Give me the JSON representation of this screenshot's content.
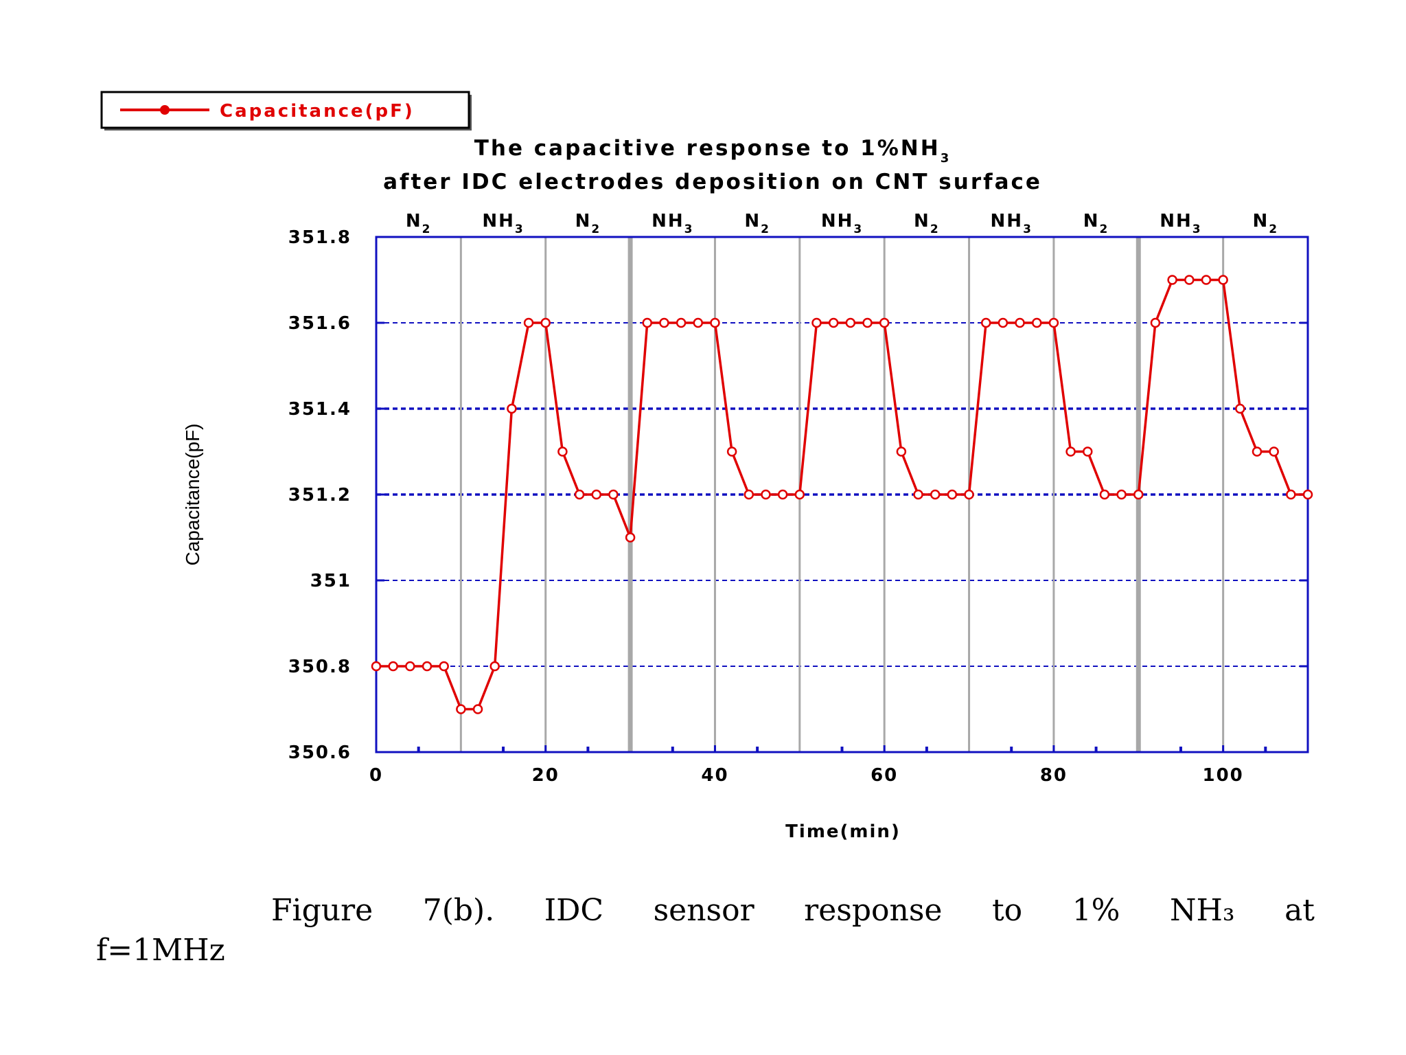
{
  "chart_data": {
    "type": "line",
    "title_line1": "The capacitive response to 1%NH",
    "title_line1_sub": "3",
    "title_line2": "after IDC electrodes deposition on CNT surface",
    "xlabel": "Time(min)",
    "ylabel": "Capacitance(pF)",
    "xlim": [
      0,
      110
    ],
    "ylim": [
      350.6,
      351.8
    ],
    "x_ticks": [
      0,
      20,
      40,
      60,
      80,
      100
    ],
    "x_tick_labels": [
      "0",
      "20",
      "40",
      "60",
      "80",
      "100"
    ],
    "y_ticks": [
      350.6,
      350.8,
      351,
      351.2,
      351.4,
      351.6,
      351.8
    ],
    "y_tick_labels": [
      "350.6",
      "350.8",
      "351",
      "351.2",
      "351.4",
      "351.6",
      "351.8"
    ],
    "grid_y": true,
    "phase_boundaries": [
      10,
      20,
      30,
      40,
      50,
      60,
      70,
      80,
      90,
      100
    ],
    "phases": [
      {
        "label": "N",
        "sub": "2",
        "center": 5
      },
      {
        "label": "NH",
        "sub": "3",
        "center": 15
      },
      {
        "label": "N",
        "sub": "2",
        "center": 25
      },
      {
        "label": "NH",
        "sub": "3",
        "center": 35
      },
      {
        "label": "N",
        "sub": "2",
        "center": 45
      },
      {
        "label": "NH",
        "sub": "3",
        "center": 55
      },
      {
        "label": "N",
        "sub": "2",
        "center": 65
      },
      {
        "label": "NH",
        "sub": "3",
        "center": 75
      },
      {
        "label": "N",
        "sub": "2",
        "center": 85
      },
      {
        "label": "NH",
        "sub": "3",
        "center": 95
      },
      {
        "label": "N",
        "sub": "2",
        "center": 105
      }
    ],
    "legend": {
      "label": "Capacitance(pF)",
      "position": "top-left"
    },
    "series": [
      {
        "name": "Capacitance(pF)",
        "color": "#e00000",
        "x": [
          0,
          2,
          4,
          6,
          8,
          10,
          12,
          14,
          16,
          18,
          20,
          22,
          24,
          26,
          28,
          30,
          32,
          34,
          36,
          38,
          40,
          42,
          44,
          46,
          48,
          50,
          52,
          54,
          56,
          58,
          60,
          62,
          64,
          66,
          68,
          70,
          72,
          74,
          76,
          78,
          80,
          82,
          84,
          86,
          88,
          90,
          92,
          94,
          96,
          98,
          100,
          102,
          104,
          106,
          108,
          110
        ],
        "y": [
          350.8,
          350.8,
          350.8,
          350.8,
          350.8,
          350.7,
          350.7,
          350.8,
          351.4,
          351.6,
          351.6,
          351.3,
          351.2,
          351.2,
          351.2,
          351.1,
          351.6,
          351.6,
          351.6,
          351.6,
          351.6,
          351.3,
          351.2,
          351.2,
          351.2,
          351.2,
          351.6,
          351.6,
          351.6,
          351.6,
          351.6,
          351.3,
          351.2,
          351.2,
          351.2,
          351.2,
          351.6,
          351.6,
          351.6,
          351.6,
          351.6,
          351.3,
          351.3,
          351.2,
          351.2,
          351.2,
          351.6,
          351.7,
          351.7,
          351.7,
          351.7,
          351.4,
          351.3,
          351.3,
          351.2,
          351.2
        ]
      }
    ]
  },
  "caption": {
    "line1": "Figure 7(b).  IDC sensor response to 1% NH₃ at",
    "line2": "f=1MHz"
  }
}
